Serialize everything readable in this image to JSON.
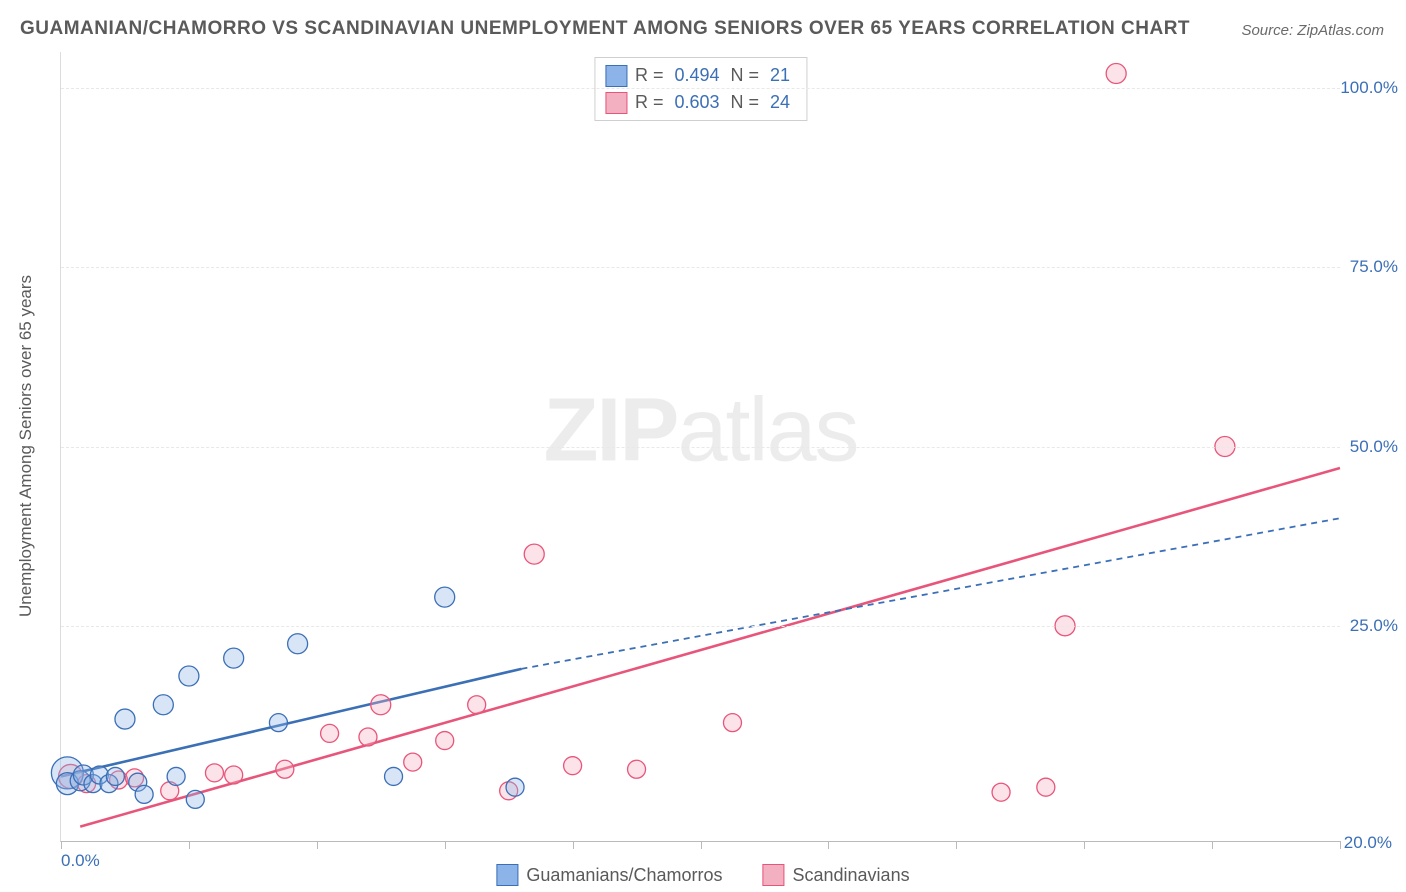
{
  "title": "GUAMANIAN/CHAMORRO VS SCANDINAVIAN UNEMPLOYMENT AMONG SENIORS OVER 65 YEARS CORRELATION CHART",
  "source": "Source: ZipAtlas.com",
  "watermark_strong": "ZIP",
  "watermark_light": "atlas",
  "y_axis_label": "Unemployment Among Seniors over 65 years",
  "chart": {
    "type": "scatter",
    "background_color": "#ffffff",
    "grid_color": "#e8e8e8",
    "grid_dash": "4,4",
    "axis_color": "#bababa",
    "tick_label_color": "#3b6fb6",
    "tick_fontsize": 17,
    "title_fontsize": 19,
    "title_color": "#5a5a5a",
    "xlim": [
      0,
      20
    ],
    "ylim": [
      -5,
      105
    ],
    "xtick_positions": [
      0,
      2,
      4,
      6,
      8,
      10,
      12,
      14,
      16,
      18,
      20
    ],
    "xtick_labels": {
      "0": "0.0%",
      "20": "20.0%"
    },
    "ytick_positions": [
      25,
      50,
      75,
      100
    ],
    "ytick_labels": {
      "25": "25.0%",
      "50": "50.0%",
      "75": "75.0%",
      "100": "100.0%"
    },
    "marker_radius": 9,
    "marker_stroke_width": 1.3,
    "marker_fill_opacity": 0.35,
    "trend_line_width": 2.6,
    "trend_dash_width": 1.8,
    "series": {
      "guam": {
        "label": "Guamanians/Chamorros",
        "fill": "#8cb4e8",
        "stroke": "#3b6fb6",
        "R": "0.494",
        "N": "21",
        "points": [
          {
            "x": 0.1,
            "y": 4.5,
            "r": 16
          },
          {
            "x": 0.1,
            "y": 3.0,
            "r": 11
          },
          {
            "x": 0.3,
            "y": 3.4,
            "r": 10
          },
          {
            "x": 0.35,
            "y": 4.2,
            "r": 10
          },
          {
            "x": 0.5,
            "y": 3.0,
            "r": 9
          },
          {
            "x": 0.6,
            "y": 4.2,
            "r": 9
          },
          {
            "x": 0.75,
            "y": 3.0,
            "r": 9
          },
          {
            "x": 0.85,
            "y": 4.0,
            "r": 9
          },
          {
            "x": 1.0,
            "y": 12.0,
            "r": 10
          },
          {
            "x": 1.2,
            "y": 3.2,
            "r": 9
          },
          {
            "x": 1.3,
            "y": 1.5,
            "r": 9
          },
          {
            "x": 1.6,
            "y": 14.0,
            "r": 10
          },
          {
            "x": 1.8,
            "y": 4.0,
            "r": 9
          },
          {
            "x": 2.0,
            "y": 18.0,
            "r": 10
          },
          {
            "x": 2.1,
            "y": 0.8,
            "r": 9
          },
          {
            "x": 2.7,
            "y": 20.5,
            "r": 10
          },
          {
            "x": 3.4,
            "y": 11.5,
            "r": 9
          },
          {
            "x": 3.7,
            "y": 22.5,
            "r": 10
          },
          {
            "x": 5.2,
            "y": 4.0,
            "r": 9
          },
          {
            "x": 6.0,
            "y": 29.0,
            "r": 10
          },
          {
            "x": 7.1,
            "y": 2.5,
            "r": 9
          }
        ],
        "trend_solid": {
          "x1": 0,
          "y1": 4.0,
          "x2": 7.2,
          "y2": 19.0
        },
        "trend_dash": {
          "x1": 7.2,
          "y1": 19.0,
          "x2": 20,
          "y2": 40.0
        }
      },
      "scan": {
        "label": "Scandinavians",
        "fill": "#f3b0c0",
        "stroke": "#e8557a",
        "R": "0.603",
        "N": "24",
        "points": [
          {
            "x": 0.15,
            "y": 4.0,
            "r": 12
          },
          {
            "x": 0.4,
            "y": 3.0,
            "r": 9
          },
          {
            "x": 0.9,
            "y": 3.5,
            "r": 9
          },
          {
            "x": 1.15,
            "y": 3.8,
            "r": 9
          },
          {
            "x": 1.7,
            "y": 2.0,
            "r": 9
          },
          {
            "x": 2.4,
            "y": 4.5,
            "r": 9
          },
          {
            "x": 2.7,
            "y": 4.2,
            "r": 9
          },
          {
            "x": 3.5,
            "y": 5.0,
            "r": 9
          },
          {
            "x": 4.2,
            "y": 10.0,
            "r": 9
          },
          {
            "x": 4.8,
            "y": 9.5,
            "r": 9
          },
          {
            "x": 5.0,
            "y": 14.0,
            "r": 10
          },
          {
            "x": 5.5,
            "y": 6.0,
            "r": 9
          },
          {
            "x": 6.0,
            "y": 9.0,
            "r": 9
          },
          {
            "x": 6.5,
            "y": 14.0,
            "r": 9
          },
          {
            "x": 7.0,
            "y": 2.0,
            "r": 9
          },
          {
            "x": 7.4,
            "y": 35.0,
            "r": 10
          },
          {
            "x": 8.0,
            "y": 5.5,
            "r": 9
          },
          {
            "x": 9.0,
            "y": 5.0,
            "r": 9
          },
          {
            "x": 10.5,
            "y": 11.5,
            "r": 9
          },
          {
            "x": 14.7,
            "y": 1.8,
            "r": 9
          },
          {
            "x": 15.4,
            "y": 2.5,
            "r": 9
          },
          {
            "x": 15.7,
            "y": 25.0,
            "r": 10
          },
          {
            "x": 16.5,
            "y": 102.0,
            "r": 10
          },
          {
            "x": 18.2,
            "y": 50.0,
            "r": 10
          }
        ],
        "trend_solid": {
          "x1": 0.3,
          "y1": -3.0,
          "x2": 20,
          "y2": 47.0
        }
      }
    }
  }
}
